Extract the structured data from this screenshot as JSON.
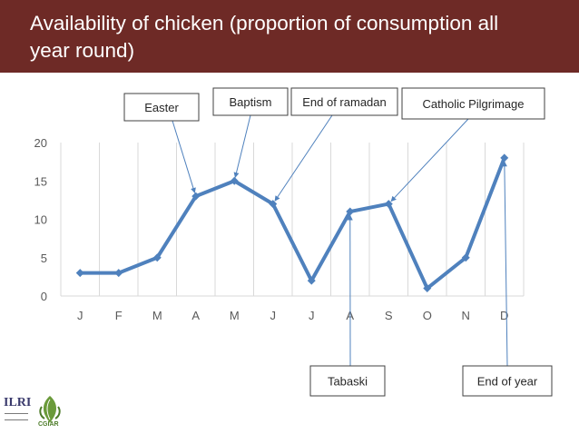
{
  "slide": {
    "title": "Availability of chicken (proportion of consumption all year round)",
    "header_color": "#6e2a26"
  },
  "chart_data": {
    "type": "line",
    "title": "",
    "xlabel": "",
    "ylabel": "",
    "categories": [
      "J",
      "F",
      "M",
      "A",
      "M",
      "J",
      "J",
      "A",
      "S",
      "O",
      "N",
      "D"
    ],
    "series": [
      {
        "values": [
          3,
          3,
          5,
          13,
          15,
          12,
          2,
          11,
          12,
          1,
          5,
          18
        ],
        "color": "#4f81bd"
      }
    ],
    "ylim": [
      0,
      20
    ],
    "yticks": [
      0,
      5,
      10,
      15,
      20
    ],
    "grid": "vertical",
    "legend": "none",
    "annotations": [
      {
        "label": "Easter",
        "month_index": 3,
        "value": 13,
        "position": "above"
      },
      {
        "label": "Baptism",
        "month_index": 4,
        "value": 15,
        "position": "above"
      },
      {
        "label": "End of ramadan",
        "month_index": 5,
        "value": 12,
        "position": "above"
      },
      {
        "label": "Catholic Pilgrimage",
        "month_index": 8,
        "value": 12,
        "position": "above"
      },
      {
        "label": "Tabaski",
        "month_index": 7,
        "value": 11,
        "position": "below"
      },
      {
        "label": "End of year",
        "month_index": 11,
        "value": 18,
        "position": "below"
      }
    ]
  },
  "logos": {
    "left_logo_text": "ILRI",
    "right_logo_text": "CGIAR"
  }
}
